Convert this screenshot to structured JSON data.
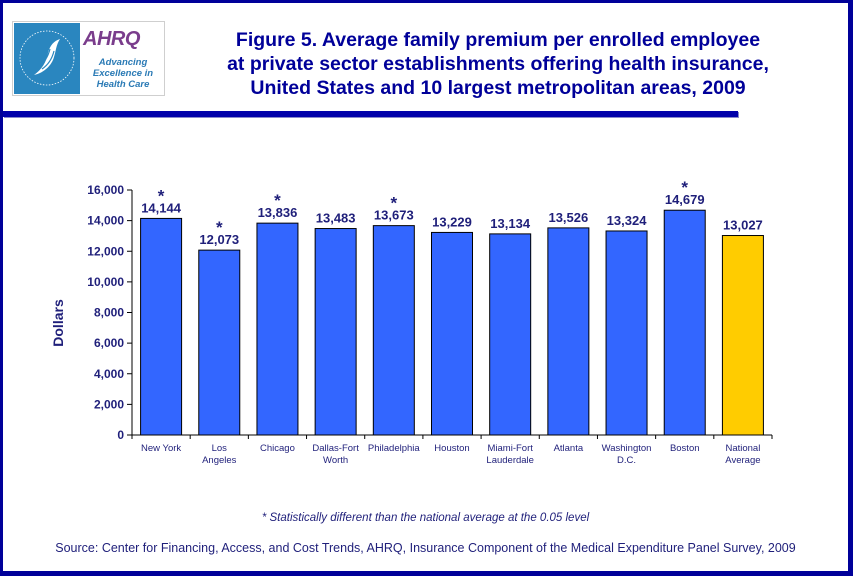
{
  "logo": {
    "agency": "AHRQ",
    "tagline_lines": [
      "Advancing",
      "Excellence in",
      "Health Care"
    ],
    "seal_text": "DEPARTMENT OF HEALTH & HUMAN SERVICES-USA"
  },
  "header": {
    "title_lines": [
      "Figure 5. Average family premium per enrolled employee",
      "at private sector establishments offering health insurance,",
      "United States and 10 largest metropolitan areas, 2009"
    ]
  },
  "colors": {
    "frame": "#000099",
    "bar_metro": "#3366ff",
    "bar_national": "#ffcc00",
    "text": "#1f1f7a"
  },
  "chart_data": {
    "type": "bar",
    "title": "Figure 5. Average family premium per enrolled employee at private sector establishments offering health insurance, United States and 10 largest metropolitan areas, 2009",
    "xlabel": "",
    "ylabel": "Dollars",
    "ylim": [
      0,
      16000
    ],
    "yticks": [
      0,
      2000,
      4000,
      6000,
      8000,
      10000,
      12000,
      14000,
      16000
    ],
    "ytick_labels": [
      "0",
      "2,000",
      "4,000",
      "6,000",
      "8,000",
      "10,000",
      "12,000",
      "14,000",
      "16,000"
    ],
    "grid": false,
    "legend": "none",
    "categories": [
      [
        "New York"
      ],
      [
        "Los",
        "Angeles"
      ],
      [
        "Chicago"
      ],
      [
        "Dallas-Fort",
        "Worth"
      ],
      [
        "Philadelphia"
      ],
      [
        "Houston"
      ],
      [
        "Miami-Fort",
        "Lauderdale"
      ],
      [
        "Atlanta"
      ],
      [
        "Washington",
        "D.C."
      ],
      [
        "Boston"
      ],
      [
        "National",
        "Average"
      ]
    ],
    "values": [
      14144,
      12073,
      13836,
      13483,
      13673,
      13229,
      13134,
      13526,
      13324,
      14679,
      13027
    ],
    "value_labels": [
      "14,144",
      "12,073",
      "13,836",
      "13,483",
      "13,673",
      "13,229",
      "13,134",
      "13,526",
      "13,324",
      "14,679",
      "13,027"
    ],
    "significant": [
      true,
      true,
      true,
      false,
      true,
      false,
      false,
      false,
      false,
      true,
      false
    ],
    "highlight_index": 10,
    "annotation_marker": "*"
  },
  "footnote": "* Statistically different than the national average at the 0.05 level",
  "source": "Source: Center for Financing, Access, and Cost Trends, AHRQ, Insurance Component of the Medical Expenditure Panel Survey, 2009"
}
